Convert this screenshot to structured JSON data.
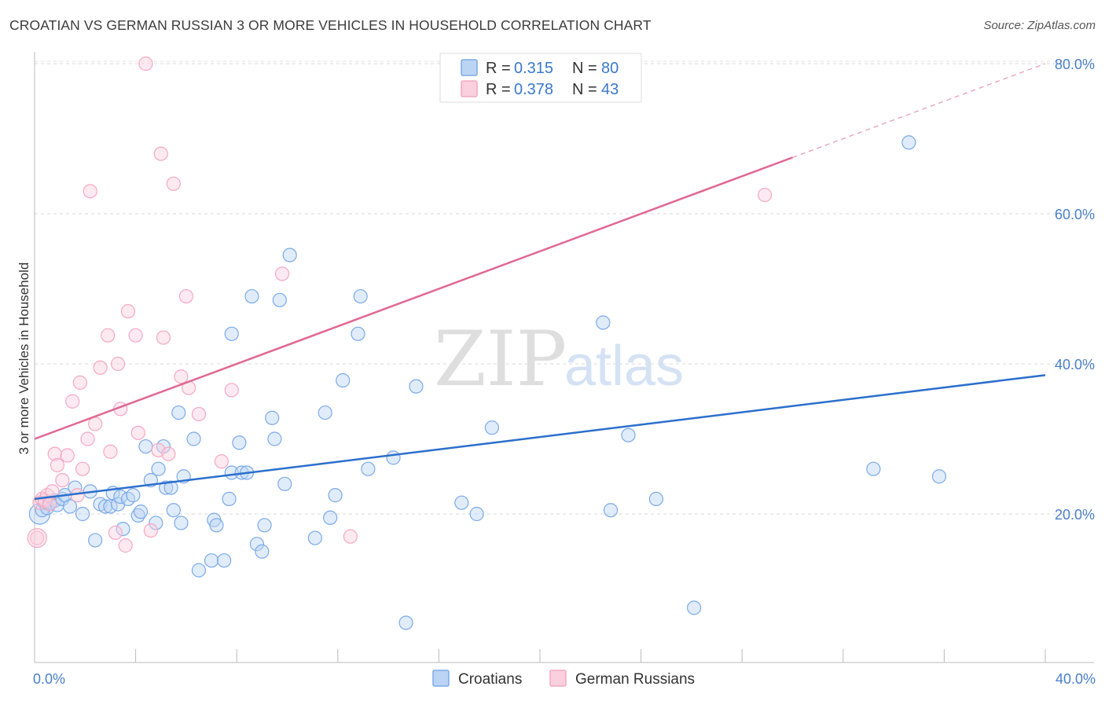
{
  "title": "CROATIAN VS GERMAN RUSSIAN 3 OR MORE VEHICLES IN HOUSEHOLD CORRELATION CHART",
  "source": "Source: ZipAtlas.com",
  "watermark": {
    "zip": "ZIP",
    "atlas": "atlas"
  },
  "chart_data": {
    "type": "scatter",
    "ylabel": "3 or more Vehicles in Household",
    "xlim": [
      0,
      40
    ],
    "ylim": [
      0,
      82
    ],
    "x_ticks": [
      0,
      40
    ],
    "x_tick_labels": [
      "0.0%",
      "40.0%"
    ],
    "y_ticks": [
      20,
      40,
      60,
      80
    ],
    "y_tick_labels": [
      "20.0%",
      "40.0%",
      "60.0%",
      "80.0%"
    ],
    "grid": true,
    "legend_placement": "top-center",
    "legend": [
      {
        "r_label": "R =",
        "r_value": "0.315",
        "n_label": "N =",
        "n_value": "80"
      },
      {
        "r_label": "R =",
        "r_value": "0.378",
        "n_label": "N =",
        "n_value": "43"
      }
    ],
    "series": [
      {
        "name": "Croatians",
        "color": "#7aaae8",
        "line_color": "#2b6fcc",
        "trend": {
          "x": [
            0,
            40
          ],
          "y": [
            22,
            38.5
          ],
          "solid_until": 40
        },
        "points": [
          [
            0.2,
            20
          ],
          [
            0.3,
            20.5
          ],
          [
            0.4,
            21.5
          ],
          [
            0.5,
            20.8
          ],
          [
            0.6,
            21.5
          ],
          [
            0.8,
            21.8
          ],
          [
            0.9,
            21.2
          ],
          [
            1.1,
            22
          ],
          [
            1.2,
            22.5
          ],
          [
            1.4,
            21
          ],
          [
            1.6,
            23.5
          ],
          [
            1.9,
            20
          ],
          [
            2.2,
            23
          ],
          [
            2.4,
            16.5
          ],
          [
            2.6,
            21.3
          ],
          [
            2.8,
            21
          ],
          [
            3.0,
            21
          ],
          [
            3.1,
            22.8
          ],
          [
            3.3,
            21.3
          ],
          [
            3.4,
            22.3
          ],
          [
            3.5,
            18
          ],
          [
            3.7,
            22
          ],
          [
            3.9,
            22.5
          ],
          [
            4.1,
            19.8
          ],
          [
            4.2,
            20.3
          ],
          [
            4.4,
            29
          ],
          [
            4.6,
            24.5
          ],
          [
            4.8,
            18.8
          ],
          [
            4.9,
            26
          ],
          [
            5.1,
            29
          ],
          [
            5.2,
            23.5
          ],
          [
            5.4,
            23.5
          ],
          [
            5.5,
            20.5
          ],
          [
            5.7,
            33.5
          ],
          [
            5.8,
            18.8
          ],
          [
            5.9,
            25
          ],
          [
            6.3,
            30
          ],
          [
            6.5,
            12.5
          ],
          [
            7.0,
            13.8
          ],
          [
            7.1,
            19.2
          ],
          [
            7.2,
            18.5
          ],
          [
            7.5,
            13.8
          ],
          [
            7.7,
            22
          ],
          [
            7.8,
            25.5
          ],
          [
            7.8,
            44
          ],
          [
            8.1,
            29.5
          ],
          [
            8.2,
            25.5
          ],
          [
            8.4,
            25.5
          ],
          [
            8.6,
            49
          ],
          [
            8.8,
            16
          ],
          [
            9.0,
            15
          ],
          [
            9.1,
            18.5
          ],
          [
            9.4,
            32.8
          ],
          [
            9.5,
            30
          ],
          [
            9.7,
            48.5
          ],
          [
            9.9,
            24
          ],
          [
            10.1,
            54.5
          ],
          [
            11.1,
            16.8
          ],
          [
            11.5,
            33.5
          ],
          [
            11.7,
            19.5
          ],
          [
            11.9,
            22.5
          ],
          [
            12.2,
            37.8
          ],
          [
            12.8,
            44
          ],
          [
            12.9,
            49
          ],
          [
            13.2,
            26
          ],
          [
            14.2,
            27.5
          ],
          [
            14.7,
            5.5
          ],
          [
            15.1,
            37
          ],
          [
            16.9,
            21.5
          ],
          [
            17.5,
            20
          ],
          [
            18.1,
            31.5
          ],
          [
            22.5,
            45.5
          ],
          [
            22.8,
            20.5
          ],
          [
            23.5,
            30.5
          ],
          [
            24.6,
            22
          ],
          [
            26.1,
            7.5
          ],
          [
            33.2,
            26
          ],
          [
            34.6,
            69.5
          ],
          [
            35.8,
            25
          ]
        ],
        "sizes": {
          "large": [
            [
              0.2,
              20
            ]
          ]
        }
      },
      {
        "name": "German Russians",
        "color": "#f4a8c0",
        "line_color": "#e06890",
        "trend": {
          "x": [
            0,
            40
          ],
          "y": [
            30,
            80
          ],
          "solid_until": 30.0
        },
        "points": [
          [
            0.1,
            16.8
          ],
          [
            0.2,
            21.5
          ],
          [
            0.3,
            22
          ],
          [
            0.4,
            21.8
          ],
          [
            0.5,
            22.5
          ],
          [
            0.6,
            21.3
          ],
          [
            0.7,
            23
          ],
          [
            0.8,
            28
          ],
          [
            0.9,
            26.5
          ],
          [
            1.1,
            24.5
          ],
          [
            1.3,
            27.8
          ],
          [
            1.5,
            35
          ],
          [
            1.7,
            22.5
          ],
          [
            1.8,
            37.5
          ],
          [
            1.9,
            26
          ],
          [
            2.1,
            30
          ],
          [
            2.2,
            63
          ],
          [
            2.4,
            32
          ],
          [
            2.6,
            39.5
          ],
          [
            2.9,
            43.8
          ],
          [
            3.0,
            28.3
          ],
          [
            3.2,
            17.5
          ],
          [
            3.3,
            40
          ],
          [
            3.4,
            34
          ],
          [
            3.6,
            15.8
          ],
          [
            3.7,
            47
          ],
          [
            4.0,
            43.8
          ],
          [
            4.1,
            30.8
          ],
          [
            4.4,
            80
          ],
          [
            4.6,
            17.8
          ],
          [
            4.9,
            28.5
          ],
          [
            5.0,
            68
          ],
          [
            5.1,
            43.5
          ],
          [
            5.3,
            28
          ],
          [
            5.5,
            64
          ],
          [
            5.8,
            38.3
          ],
          [
            6.0,
            49
          ],
          [
            6.1,
            36.8
          ],
          [
            6.5,
            33.3
          ],
          [
            7.4,
            27
          ],
          [
            7.8,
            36.5
          ],
          [
            9.8,
            52
          ],
          [
            12.5,
            17
          ]
        ],
        "extra_points": [
          [
            28.9,
            62.5
          ]
        ]
      }
    ]
  }
}
